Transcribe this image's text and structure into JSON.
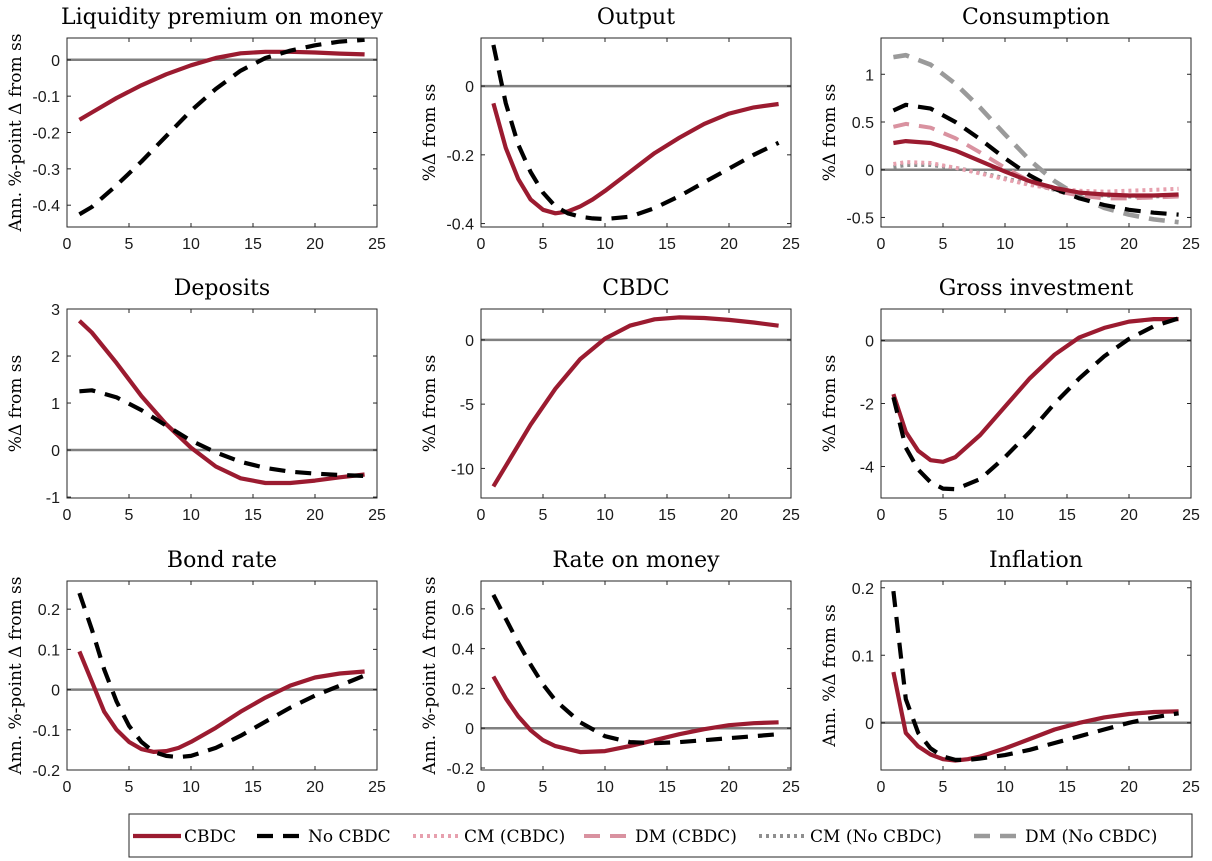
{
  "colors": {
    "cbdc": "#9B1B30",
    "no_cbdc": "#000000",
    "cm_cbdc": "#E7A0AE",
    "dm_cbdc": "#D992A0",
    "cm_no_cbdc": "#8F8F8F",
    "dm_no_cbdc": "#9A9A9A",
    "zero_line": "#808080"
  },
  "legend": {
    "entries": [
      {
        "key": "cbdc",
        "label": "CBDC",
        "dash": "solid"
      },
      {
        "key": "no_cbdc",
        "label": "No CBDC",
        "dash": "dashed"
      },
      {
        "key": "cm_cbdc",
        "label": "CM (CBDC)",
        "dash": "dotted"
      },
      {
        "key": "dm_cbdc",
        "label": "DM (CBDC)",
        "dash": "dashed"
      },
      {
        "key": "cm_no_cbdc",
        "label": "CM (No CBDC)",
        "dash": "dotted"
      },
      {
        "key": "dm_no_cbdc",
        "label": "DM (No CBDC)",
        "dash": "dashed"
      }
    ]
  },
  "chart_data": [
    {
      "type": "line",
      "title": "Liquidity premium on money",
      "ylabel": "Ann. %-point Δ from ss",
      "xlim": [
        0,
        25
      ],
      "ylim": [
        -0.46,
        0.06
      ],
      "xticks": [
        0,
        5,
        10,
        15,
        20,
        25
      ],
      "yticks": [
        0,
        -0.1,
        -0.2,
        -0.3,
        -0.4
      ],
      "ytick_labels": [
        "0",
        "-0.1",
        "-0.2",
        "-0.3",
        "-0.4"
      ],
      "x": [
        1,
        2,
        4,
        6,
        8,
        10,
        12,
        14,
        16,
        18,
        20,
        22,
        24
      ],
      "series": [
        {
          "key": "cbdc",
          "name": "CBDC",
          "values": [
            -0.165,
            -0.145,
            -0.105,
            -0.07,
            -0.04,
            -0.015,
            0.005,
            0.018,
            0.022,
            0.022,
            0.02,
            0.017,
            0.015
          ]
        },
        {
          "key": "no_cbdc",
          "name": "No CBDC",
          "values": [
            -0.425,
            -0.405,
            -0.345,
            -0.28,
            -0.21,
            -0.14,
            -0.08,
            -0.03,
            0.005,
            0.025,
            0.04,
            0.05,
            0.055
          ]
        }
      ]
    },
    {
      "type": "line",
      "title": "Output",
      "ylabel": "%Δ from ss",
      "xlim": [
        0,
        25
      ],
      "ylim": [
        -0.41,
        0.14
      ],
      "xticks": [
        0,
        5,
        10,
        15,
        20,
        25
      ],
      "yticks": [
        0,
        -0.2,
        -0.4
      ],
      "ytick_labels": [
        "0",
        "-0.2",
        "-0.4"
      ],
      "x": [
        1,
        2,
        3,
        4,
        5,
        6,
        7,
        8,
        9,
        10,
        12,
        14,
        16,
        18,
        20,
        22,
        24
      ],
      "series": [
        {
          "key": "cbdc",
          "name": "CBDC",
          "values": [
            -0.05,
            -0.18,
            -0.27,
            -0.33,
            -0.36,
            -0.37,
            -0.365,
            -0.35,
            -0.33,
            -0.305,
            -0.25,
            -0.195,
            -0.15,
            -0.11,
            -0.08,
            -0.062,
            -0.052
          ]
        },
        {
          "key": "no_cbdc",
          "name": "No CBDC",
          "values": [
            0.12,
            -0.05,
            -0.17,
            -0.25,
            -0.31,
            -0.35,
            -0.37,
            -0.38,
            -0.385,
            -0.387,
            -0.38,
            -0.355,
            -0.32,
            -0.28,
            -0.24,
            -0.2,
            -0.165
          ]
        }
      ]
    },
    {
      "type": "line",
      "title": "Consumption",
      "ylabel": "%Δ from ss",
      "xlim": [
        0,
        25
      ],
      "ylim": [
        -0.6,
        1.38
      ],
      "xticks": [
        0,
        5,
        10,
        15,
        20,
        25
      ],
      "yticks": [
        1,
        0.5,
        0,
        -0.5
      ],
      "ytick_labels": [
        "1",
        "0.5",
        "0",
        "-0.5"
      ],
      "x": [
        1,
        2,
        4,
        6,
        8,
        10,
        12,
        14,
        16,
        18,
        20,
        22,
        24
      ],
      "series": [
        {
          "key": "dm_no_cbdc",
          "name": "DM (No CBDC)",
          "values": [
            1.18,
            1.2,
            1.1,
            0.9,
            0.65,
            0.37,
            0.1,
            -0.12,
            -0.28,
            -0.4,
            -0.47,
            -0.52,
            -0.55
          ]
        },
        {
          "key": "cm_no_cbdc",
          "name": "CM (No CBDC)",
          "values": [
            0.03,
            0.05,
            0.05,
            0.02,
            -0.03,
            -0.09,
            -0.15,
            -0.21,
            -0.25,
            -0.27,
            -0.28,
            -0.28,
            -0.27
          ]
        },
        {
          "key": "cm_cbdc",
          "name": "CM (CBDC)",
          "values": [
            0.06,
            0.08,
            0.07,
            0.02,
            -0.04,
            -0.1,
            -0.16,
            -0.2,
            -0.22,
            -0.23,
            -0.22,
            -0.21,
            -0.2
          ]
        },
        {
          "key": "dm_cbdc",
          "name": "DM (CBDC)",
          "values": [
            0.45,
            0.48,
            0.44,
            0.33,
            0.18,
            0.02,
            -0.12,
            -0.22,
            -0.27,
            -0.3,
            -0.3,
            -0.29,
            -0.28
          ]
        },
        {
          "key": "no_cbdc",
          "name": "No CBDC",
          "values": [
            0.62,
            0.68,
            0.64,
            0.5,
            0.32,
            0.12,
            -0.06,
            -0.2,
            -0.3,
            -0.37,
            -0.42,
            -0.45,
            -0.47
          ]
        },
        {
          "key": "cbdc",
          "name": "CBDC",
          "values": [
            0.28,
            0.3,
            0.28,
            0.2,
            0.09,
            -0.02,
            -0.12,
            -0.19,
            -0.24,
            -0.26,
            -0.27,
            -0.27,
            -0.26
          ]
        }
      ]
    },
    {
      "type": "line",
      "title": "Deposits",
      "ylabel": "%Δ from ss",
      "xlim": [
        0,
        25
      ],
      "ylim": [
        -1.02,
        3.0
      ],
      "xticks": [
        0,
        5,
        10,
        15,
        20,
        25
      ],
      "yticks": [
        3,
        2,
        1,
        0,
        -1
      ],
      "ytick_labels": [
        "3",
        "2",
        "1",
        "0",
        "-1"
      ],
      "x": [
        1,
        2,
        4,
        6,
        8,
        10,
        12,
        14,
        16,
        18,
        20,
        22,
        24
      ],
      "series": [
        {
          "key": "cbdc",
          "name": "CBDC",
          "values": [
            2.75,
            2.5,
            1.85,
            1.15,
            0.55,
            0.05,
            -0.35,
            -0.6,
            -0.7,
            -0.7,
            -0.65,
            -0.58,
            -0.52
          ]
        },
        {
          "key": "no_cbdc",
          "name": "No CBDC",
          "values": [
            1.25,
            1.27,
            1.12,
            0.85,
            0.52,
            0.2,
            -0.05,
            -0.25,
            -0.38,
            -0.46,
            -0.5,
            -0.53,
            -0.55
          ]
        }
      ]
    },
    {
      "type": "line",
      "title": "CBDC",
      "ylabel": "%Δ from ss",
      "xlim": [
        0,
        25
      ],
      "ylim": [
        -12.3,
        2.4
      ],
      "xticks": [
        0,
        5,
        10,
        15,
        20,
        25
      ],
      "yticks": [
        0,
        -5,
        -10
      ],
      "ytick_labels": [
        "0",
        "-5",
        "-10"
      ],
      "x": [
        1,
        2,
        4,
        6,
        8,
        10,
        12,
        14,
        16,
        18,
        20,
        22,
        24
      ],
      "series": [
        {
          "key": "cbdc",
          "name": "CBDC",
          "values": [
            -11.4,
            -9.8,
            -6.6,
            -3.8,
            -1.5,
            0.1,
            1.1,
            1.6,
            1.75,
            1.7,
            1.55,
            1.35,
            1.1
          ]
        }
      ]
    },
    {
      "type": "line",
      "title": "Gross investment",
      "ylabel": "%Δ from ss",
      "xlim": [
        0,
        25
      ],
      "ylim": [
        -5.0,
        1.0
      ],
      "xticks": [
        0,
        5,
        10,
        15,
        20,
        25
      ],
      "yticks": [
        0,
        -2,
        -4
      ],
      "ytick_labels": [
        "0",
        "-2",
        "-4"
      ],
      "x": [
        1,
        2,
        3,
        4,
        5,
        6,
        8,
        10,
        12,
        14,
        16,
        18,
        20,
        22,
        24
      ],
      "series": [
        {
          "key": "cbdc",
          "name": "CBDC",
          "values": [
            -1.7,
            -2.9,
            -3.5,
            -3.8,
            -3.85,
            -3.7,
            -3.0,
            -2.1,
            -1.2,
            -0.45,
            0.1,
            0.4,
            0.6,
            0.68,
            0.68
          ]
        },
        {
          "key": "no_cbdc",
          "name": "No CBDC",
          "values": [
            -1.8,
            -3.4,
            -4.1,
            -4.5,
            -4.7,
            -4.72,
            -4.4,
            -3.7,
            -2.9,
            -2.0,
            -1.2,
            -0.5,
            0.05,
            0.45,
            0.7
          ]
        }
      ]
    },
    {
      "type": "line",
      "title": "Bond rate",
      "ylabel": "Ann. %-point Δ from ss",
      "xlim": [
        0,
        25
      ],
      "ylim": [
        -0.2,
        0.27
      ],
      "xticks": [
        0,
        5,
        10,
        15,
        20,
        25
      ],
      "yticks": [
        0.2,
        0.1,
        0,
        -0.1,
        -0.2
      ],
      "ytick_labels": [
        "0.2",
        "0.1",
        "0",
        "-0.1",
        "-0.2"
      ],
      "x": [
        1,
        2,
        3,
        4,
        5,
        6,
        7,
        8,
        9,
        10,
        12,
        14,
        16,
        18,
        20,
        22,
        24
      ],
      "series": [
        {
          "key": "cbdc",
          "name": "CBDC",
          "values": [
            0.095,
            0.02,
            -0.055,
            -0.1,
            -0.13,
            -0.148,
            -0.155,
            -0.153,
            -0.145,
            -0.13,
            -0.095,
            -0.055,
            -0.02,
            0.01,
            0.03,
            0.04,
            0.045
          ]
        },
        {
          "key": "no_cbdc",
          "name": "No CBDC",
          "values": [
            0.24,
            0.15,
            0.05,
            -0.03,
            -0.09,
            -0.13,
            -0.155,
            -0.165,
            -0.168,
            -0.165,
            -0.145,
            -0.115,
            -0.08,
            -0.045,
            -0.015,
            0.01,
            0.035
          ]
        }
      ]
    },
    {
      "type": "line",
      "title": "Rate on money",
      "ylabel": "Ann. %-point Δ from ss",
      "xlim": [
        0,
        25
      ],
      "ylim": [
        -0.21,
        0.74
      ],
      "xticks": [
        0,
        5,
        10,
        15,
        20,
        25
      ],
      "yticks": [
        0.6,
        0.4,
        0.2,
        0,
        -0.2
      ],
      "ytick_labels": [
        "0.6",
        "0.4",
        "0.2",
        "0",
        "-0.2"
      ],
      "x": [
        1,
        2,
        3,
        4,
        5,
        6,
        8,
        10,
        12,
        14,
        16,
        18,
        20,
        22,
        24
      ],
      "series": [
        {
          "key": "cbdc",
          "name": "CBDC",
          "values": [
            0.26,
            0.15,
            0.06,
            -0.01,
            -0.06,
            -0.09,
            -0.12,
            -0.115,
            -0.09,
            -0.06,
            -0.03,
            -0.005,
            0.015,
            0.025,
            0.03
          ]
        },
        {
          "key": "no_cbdc",
          "name": "No CBDC",
          "values": [
            0.67,
            0.55,
            0.43,
            0.32,
            0.22,
            0.14,
            0.03,
            -0.04,
            -0.07,
            -0.075,
            -0.07,
            -0.06,
            -0.05,
            -0.04,
            -0.03
          ]
        }
      ]
    },
    {
      "type": "line",
      "title": "Inflation",
      "ylabel": "Ann. %Δ from ss",
      "xlim": [
        0,
        25
      ],
      "ylim": [
        -0.07,
        0.21
      ],
      "xticks": [
        0,
        5,
        10,
        15,
        20,
        25
      ],
      "yticks": [
        0.2,
        0.1,
        0
      ],
      "ytick_labels": [
        "0.2",
        "0.1",
        "0"
      ],
      "x": [
        1,
        2,
        3,
        4,
        5,
        6,
        7,
        8,
        10,
        12,
        14,
        16,
        18,
        20,
        22,
        24
      ],
      "series": [
        {
          "key": "cbdc",
          "name": "CBDC",
          "values": [
            0.075,
            -0.015,
            -0.035,
            -0.047,
            -0.054,
            -0.056,
            -0.054,
            -0.05,
            -0.038,
            -0.024,
            -0.01,
            0.0,
            0.008,
            0.013,
            0.016,
            0.017
          ]
        },
        {
          "key": "no_cbdc",
          "name": "No CBDC",
          "values": [
            0.195,
            0.035,
            -0.015,
            -0.038,
            -0.05,
            -0.055,
            -0.055,
            -0.053,
            -0.048,
            -0.04,
            -0.03,
            -0.02,
            -0.01,
            0.0,
            0.008,
            0.014
          ]
        }
      ]
    }
  ]
}
